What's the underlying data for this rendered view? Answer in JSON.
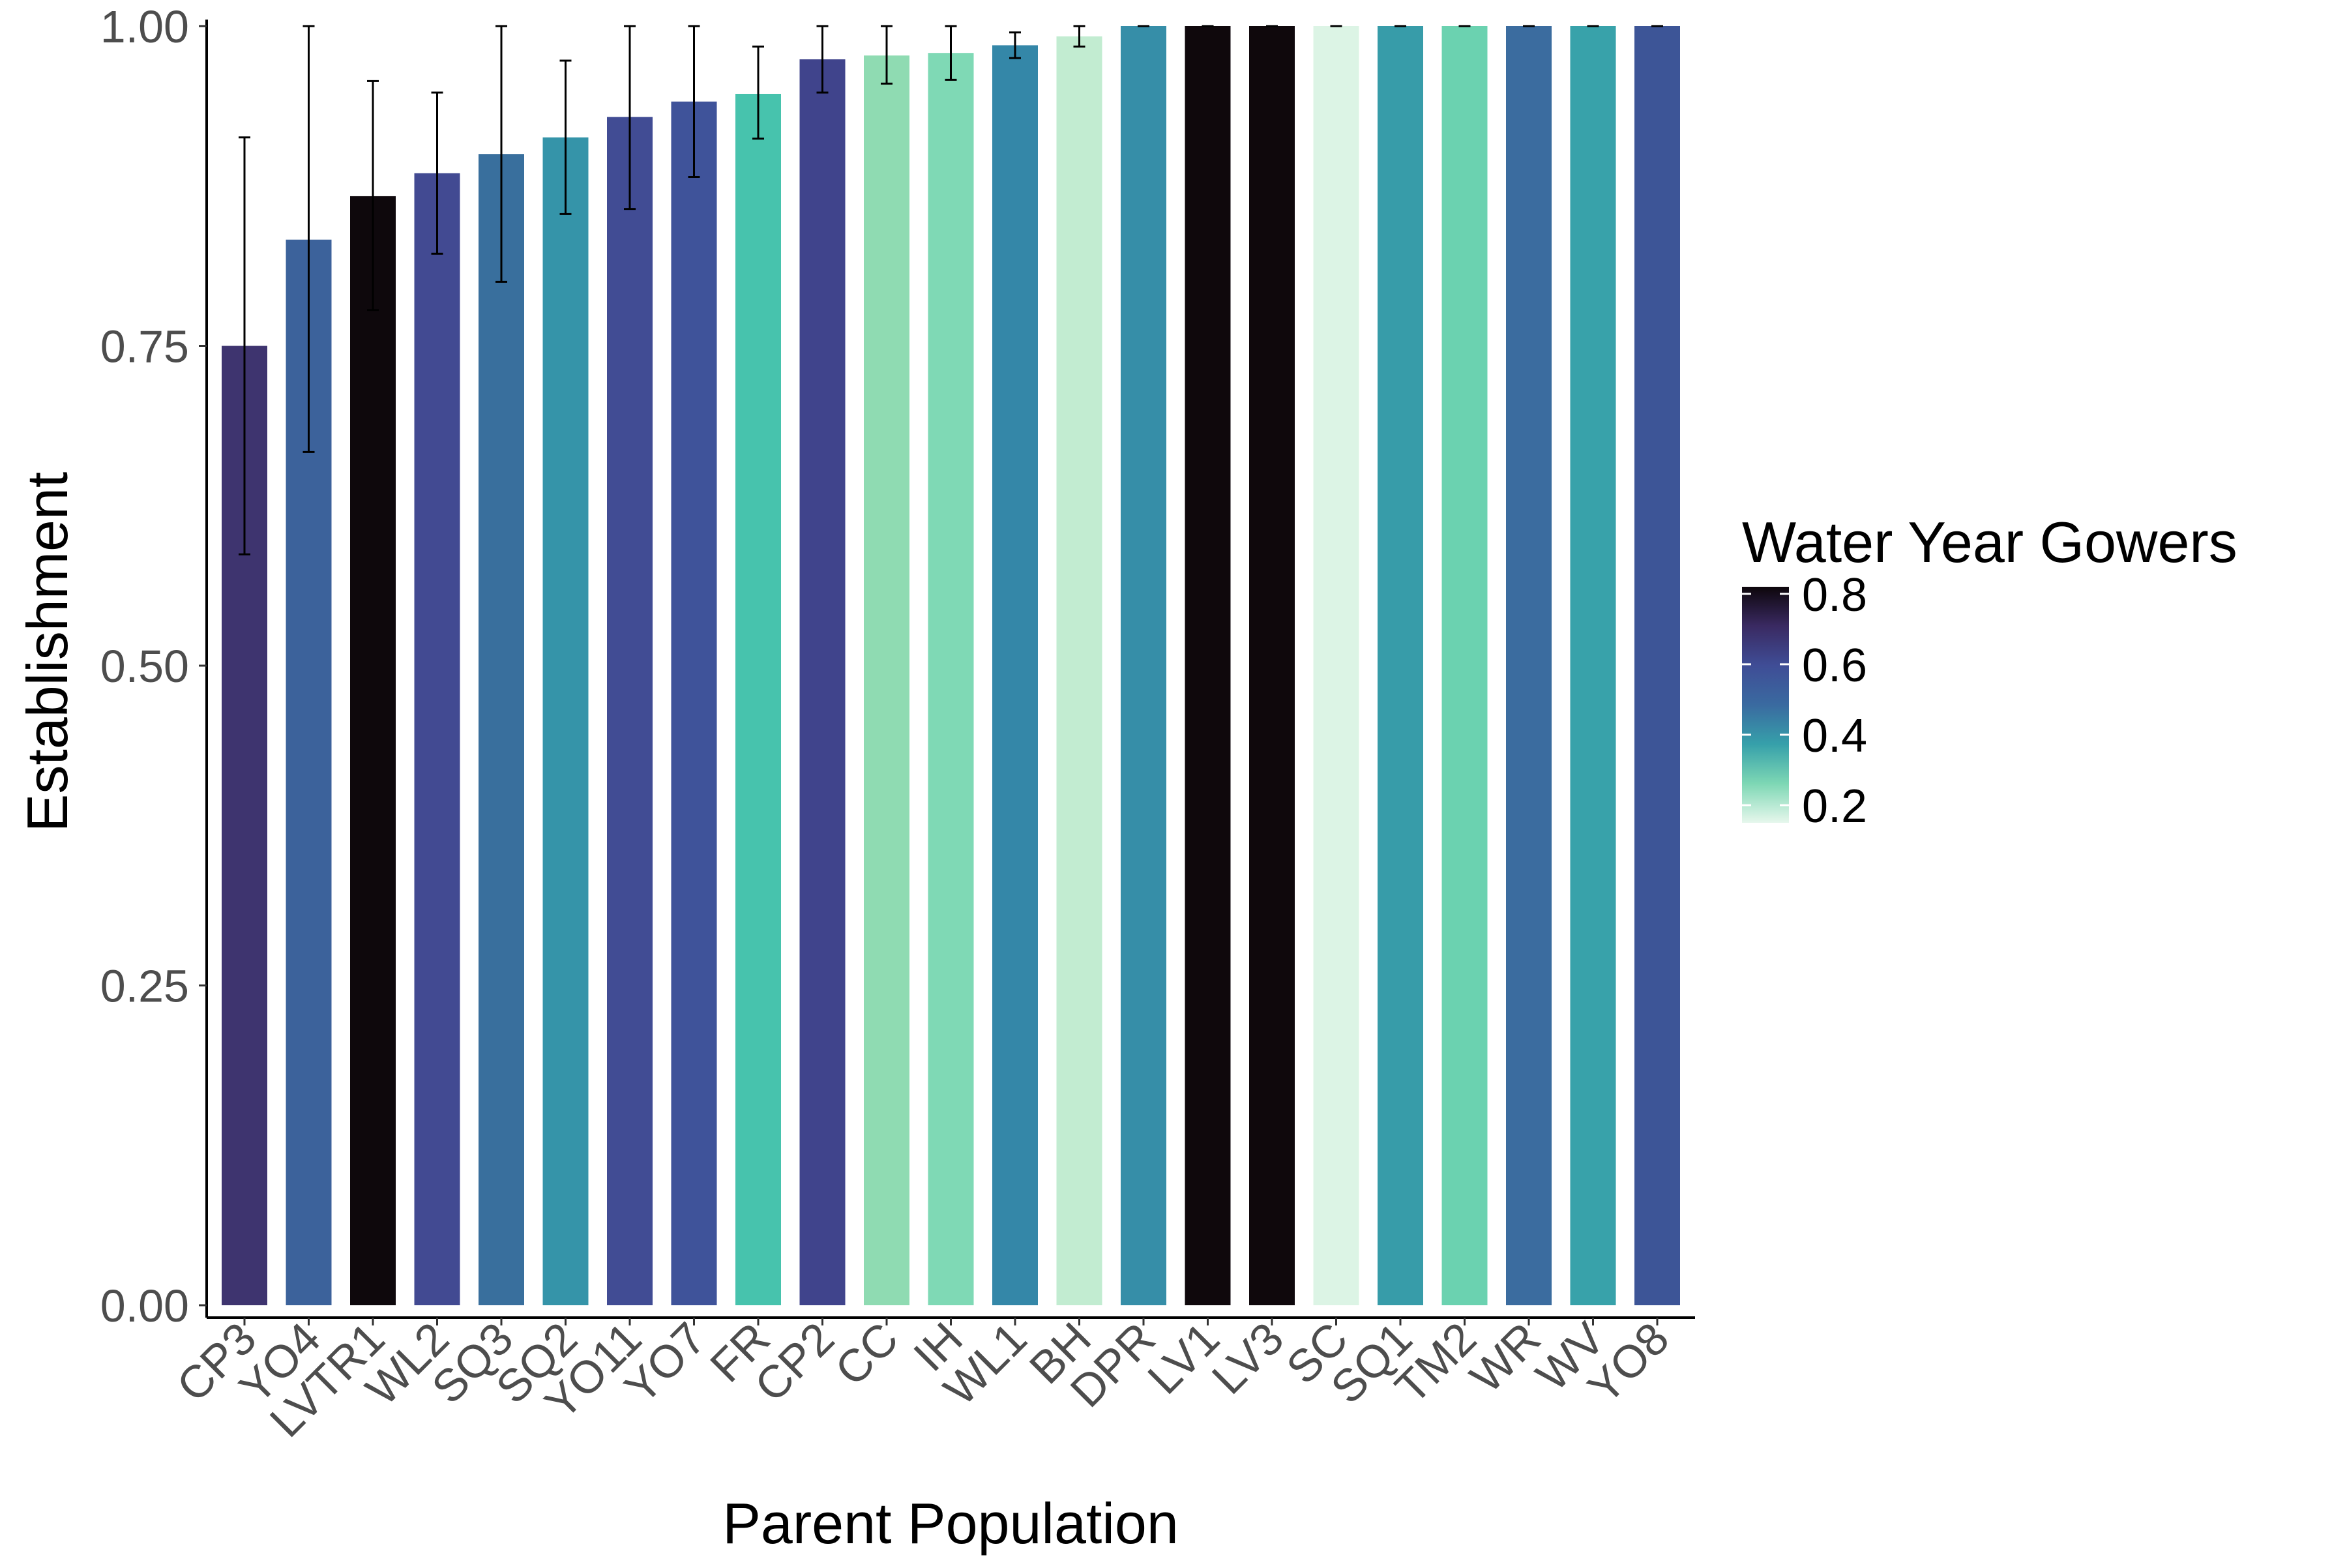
{
  "chart_data": {
    "type": "bar",
    "title": "",
    "xlabel": "Parent Population",
    "ylabel": "Establishment",
    "ylim": [
      0,
      1
    ],
    "yticks": [
      "0.00",
      "0.25",
      "0.50",
      "0.75",
      "1.00"
    ],
    "grid": false,
    "legend_position": "right",
    "categories": [
      "CP3",
      "YO4",
      "LVTR1",
      "WL2",
      "SQ3",
      "SQ2",
      "YO11",
      "YO7",
      "FR",
      "CP2",
      "CC",
      "IH",
      "WL1",
      "BH",
      "DPR",
      "LV1",
      "LV3",
      "SC",
      "SQ1",
      "TM2",
      "WR",
      "WV",
      "YO8"
    ],
    "values": [
      0.75,
      0.833,
      0.867,
      0.885,
      0.9,
      0.913,
      0.929,
      0.941,
      0.947,
      0.974,
      0.977,
      0.979,
      0.985,
      0.992,
      1.0,
      1.0,
      1.0,
      1.0,
      1.0,
      1.0,
      1.0,
      1.0,
      1.0
    ],
    "error_low": [
      0.587,
      0.667,
      0.778,
      0.822,
      0.8,
      0.853,
      0.857,
      0.882,
      0.912,
      0.948,
      0.955,
      0.958,
      0.975,
      0.984,
      1.0,
      1.0,
      1.0,
      1.0,
      1.0,
      1.0,
      1.0,
      1.0,
      1.0
    ],
    "error_high": [
      0.913,
      1.0,
      0.957,
      0.948,
      1.0,
      0.973,
      1.0,
      1.0,
      0.984,
      1.0,
      1.0,
      1.0,
      0.995,
      1.0,
      1.0,
      1.0,
      1.0,
      1.0,
      1.0,
      1.0,
      1.0,
      1.0,
      1.0
    ],
    "color_values": [
      0.66,
      0.55,
      0.8,
      0.6,
      0.52,
      0.43,
      0.6,
      0.6,
      0.3,
      0.62,
      0.24,
      0.27,
      0.46,
      0.19,
      0.45,
      0.79,
      0.79,
      0.15,
      0.41,
      0.29,
      0.52,
      0.39,
      0.58
    ],
    "colors": [
      "#3e346f",
      "#3c629b",
      "#0e080c",
      "#424a92",
      "#396f9d",
      "#3594a9",
      "#414c94",
      "#3f539a",
      "#47c3ad",
      "#40448c",
      "#8fdbb2",
      "#7fd9b5",
      "#3487a8",
      "#c2ecd1",
      "#368ea8",
      "#0f080c",
      "#0f080c",
      "#dcf4e5",
      "#379ca9",
      "#6bd2b0",
      "#3b6c9f",
      "#38a2aa",
      "#3d5597"
    ],
    "legend": {
      "title": "Water Year Gowers",
      "ticks": [
        "0.2",
        "0.4",
        "0.6",
        "0.8"
      ],
      "range": [
        0.15,
        0.82
      ],
      "gradient": [
        "#e6f7ec",
        "#7dd7b4",
        "#36a0aa",
        "#3a6aa0",
        "#3f4d96",
        "#3a2a62",
        "#0d060b"
      ]
    }
  }
}
